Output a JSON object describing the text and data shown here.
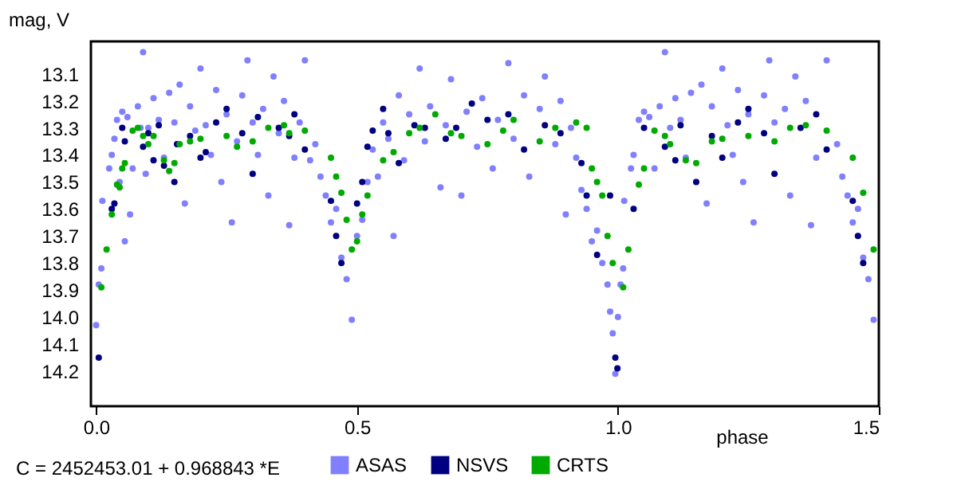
{
  "chart_data": {
    "type": "scatter",
    "xlabel": "phase",
    "ylabel": "mag, V",
    "annotations": [
      "C = 2452453.01 + 0.968843 *E"
    ],
    "xlim": [
      -0.01,
      1.5
    ],
    "xticks": [
      {
        "value": 0,
        "label": "0.0"
      },
      0.5,
      {
        "value": 1,
        "label": "1.0"
      },
      1.5
    ],
    "ylim": [
      14.33,
      12.98
    ],
    "yticks": [
      13.1,
      13.2,
      13.3,
      13.4,
      13.5,
      13.6,
      13.7,
      13.8,
      13.9,
      {
        "value": 14,
        "label": "14.0"
      },
      14.1,
      14.2
    ],
    "grid": false,
    "legend": "bottom",
    "marker": "circle",
    "series": [
      {
        "name": "ASAS",
        "color": "#8080ff",
        "x": [
          0,
          0.005,
          0.01,
          0.012,
          0.025,
          0.03,
          0.035,
          0.04,
          0.045,
          0.05,
          0.055,
          0.06,
          0.065,
          0.07,
          0.08,
          0.085,
          0.09,
          0.095,
          0.1,
          0.11,
          0.12,
          0.13,
          0.14,
          0.15,
          0.16,
          0.17,
          0.18,
          0.19,
          0.2,
          0.21,
          0.22,
          0.23,
          0.24,
          0.25,
          0.26,
          0.27,
          0.28,
          0.29,
          0.3,
          0.31,
          0.32,
          0.33,
          0.34,
          0.35,
          0.36,
          0.37,
          0.38,
          0.39,
          0.4,
          0.41,
          0.42,
          0.43,
          0.44,
          0.45,
          0.46,
          0.47,
          0.48,
          0.49,
          0.5,
          0.51,
          0.52,
          0.53,
          0.54,
          0.55,
          0.56,
          0.57,
          0.58,
          0.59,
          0.6,
          0.62,
          0.63,
          0.64,
          0.66,
          0.67,
          0.68,
          0.7,
          0.71,
          0.73,
          0.74,
          0.76,
          0.77,
          0.79,
          0.8,
          0.82,
          0.83,
          0.85,
          0.86,
          0.88,
          0.89,
          0.9,
          0.91,
          0.92,
          0.93,
          0.94,
          0.95,
          0.96,
          0.97,
          0.98,
          0.985,
          0.99,
          0.995,
          1,
          1.005,
          1.01,
          1.012,
          1.025,
          1.03,
          1.04,
          1.05,
          1.06,
          1.07,
          1.08,
          1.09,
          1.1,
          1.11,
          1.12,
          1.13,
          1.14,
          1.16,
          1.17,
          1.18,
          1.2,
          1.21,
          1.22,
          1.23,
          1.24,
          1.25,
          1.26,
          1.28,
          1.29,
          1.3,
          1.32,
          1.33,
          1.34,
          1.36,
          1.37,
          1.38,
          1.4,
          1.42,
          1.43,
          1.44,
          1.45,
          1.46,
          1.47,
          1.48,
          1.49
        ],
        "values": [
          14.03,
          13.88,
          13.82,
          13.57,
          13.45,
          13.4,
          13.34,
          13.27,
          13.5,
          13.24,
          13.72,
          13.26,
          13.62,
          13.45,
          13.22,
          13.3,
          13.02,
          13.47,
          13.3,
          13.19,
          13.27,
          13.41,
          13.17,
          13.28,
          13.14,
          13.58,
          13.22,
          13.31,
          13.08,
          13.29,
          13.4,
          13.16,
          13.5,
          13.25,
          13.65,
          13.35,
          13.18,
          13.05,
          13.28,
          13.4,
          13.23,
          13.55,
          13.11,
          13.32,
          13.2,
          13.66,
          13.41,
          13.28,
          13.05,
          13.42,
          13.36,
          13.48,
          13.55,
          13.65,
          13.6,
          13.78,
          13.86,
          14.01,
          13.7,
          13.64,
          13.5,
          13.38,
          13.48,
          13.28,
          13.34,
          13.7,
          13.18,
          13.42,
          13.25,
          13.08,
          13.35,
          13.22,
          13.52,
          13.29,
          13.12,
          13.55,
          13.24,
          13.37,
          13.19,
          13.45,
          13.27,
          13.06,
          13.34,
          13.18,
          13.48,
          13.23,
          13.11,
          13.36,
          13.2,
          13.62,
          13.3,
          13.41,
          13.53,
          13.6,
          13.72,
          13.68,
          13.8,
          13.88,
          13.98,
          14.06,
          14.21,
          14,
          13.88,
          13.82,
          13.57,
          13.45,
          13.4,
          13.27,
          13.24,
          13.26,
          13.45,
          13.22,
          13.02,
          13.3,
          13.19,
          13.27,
          13.41,
          13.17,
          13.14,
          13.58,
          13.22,
          13.08,
          13.29,
          13.4,
          13.16,
          13.5,
          13.25,
          13.65,
          13.18,
          13.05,
          13.28,
          13.23,
          13.55,
          13.11,
          13.2,
          13.66,
          13.41,
          13.05,
          13.36,
          13.48,
          13.55,
          13.65,
          13.6,
          13.78,
          13.86,
          14.01
        ]
      },
      {
        "name": "NSVS",
        "color": "#000080",
        "x": [
          0.005,
          0.03,
          0.035,
          0.05,
          0.055,
          0.09,
          0.1,
          0.11,
          0.12,
          0.13,
          0.15,
          0.155,
          0.18,
          0.2,
          0.21,
          0.23,
          0.25,
          0.28,
          0.3,
          0.31,
          0.35,
          0.37,
          0.38,
          0.4,
          0.45,
          0.46,
          0.47,
          0.5,
          0.51,
          0.52,
          0.53,
          0.55,
          0.56,
          0.58,
          0.61,
          0.63,
          0.67,
          0.69,
          0.72,
          0.75,
          0.79,
          0.82,
          0.86,
          0.89,
          0.93,
          0.94,
          0.96,
          0.985,
          0.995,
          0.999,
          1.03,
          1.05,
          1.09,
          1.11,
          1.12,
          1.15,
          1.18,
          1.2,
          1.23,
          1.25,
          1.28,
          1.3,
          1.35,
          1.38,
          1.4,
          1.45,
          1.46,
          1.47
        ],
        "values": [
          14.15,
          13.6,
          13.58,
          13.3,
          13.35,
          13.37,
          13.32,
          13.42,
          13.29,
          13.44,
          13.5,
          13.36,
          13.33,
          13.41,
          13.39,
          13.28,
          13.23,
          13.32,
          13.47,
          13.26,
          13.3,
          13.33,
          13.25,
          13.38,
          13.57,
          13.7,
          13.8,
          13.58,
          13.5,
          13.37,
          13.31,
          13.23,
          13.32,
          13.43,
          13.29,
          13.3,
          13.34,
          13.3,
          13.21,
          13.27,
          13.25,
          13.38,
          13.29,
          13.32,
          13.43,
          13.55,
          13.77,
          13.55,
          14.15,
          14.19,
          13.6,
          13.3,
          13.37,
          13.42,
          13.29,
          13.5,
          13.33,
          13.41,
          13.28,
          13.23,
          13.32,
          13.47,
          13.3,
          13.25,
          13.38,
          13.57,
          13.7,
          13.8
        ]
      },
      {
        "name": "CRTS",
        "color": "#00aa00",
        "x": [
          0.01,
          0.02,
          0.03,
          0.04,
          0.045,
          0.05,
          0.055,
          0.07,
          0.08,
          0.09,
          0.1,
          0.11,
          0.13,
          0.14,
          0.15,
          0.16,
          0.18,
          0.2,
          0.25,
          0.27,
          0.3,
          0.33,
          0.36,
          0.37,
          0.4,
          0.45,
          0.46,
          0.47,
          0.48,
          0.49,
          0.5,
          0.51,
          0.52,
          0.55,
          0.57,
          0.6,
          0.62,
          0.65,
          0.68,
          0.7,
          0.75,
          0.78,
          0.8,
          0.85,
          0.88,
          0.92,
          0.94,
          0.95,
          0.96,
          0.97,
          0.98,
          0.99,
          1.01,
          1.02,
          1.04,
          1.05,
          1.07,
          1.09,
          1.1,
          1.13,
          1.15,
          1.18,
          1.2,
          1.25,
          1.3,
          1.33,
          1.36,
          1.4,
          1.45,
          1.47,
          1.49
        ],
        "values": [
          13.89,
          13.75,
          13.62,
          13.51,
          13.52,
          13.45,
          13.43,
          13.31,
          13.3,
          13.33,
          13.36,
          13.33,
          13.42,
          13.46,
          13.43,
          13.36,
          13.35,
          13.34,
          13.33,
          13.37,
          13.35,
          13.3,
          13.29,
          13.32,
          13.31,
          13.41,
          13.48,
          13.54,
          13.64,
          13.75,
          13.72,
          13.62,
          13.55,
          13.42,
          13.39,
          13.32,
          13.3,
          13.25,
          13.32,
          13.33,
          13.36,
          13.31,
          13.27,
          13.35,
          13.3,
          13.28,
          13.3,
          13.45,
          13.5,
          13.55,
          13.7,
          13.8,
          13.89,
          13.75,
          13.51,
          13.45,
          13.31,
          13.33,
          13.36,
          13.42,
          13.43,
          13.35,
          13.34,
          13.33,
          13.35,
          13.3,
          13.29,
          13.31,
          13.41,
          13.54,
          13.75
        ]
      }
    ]
  }
}
